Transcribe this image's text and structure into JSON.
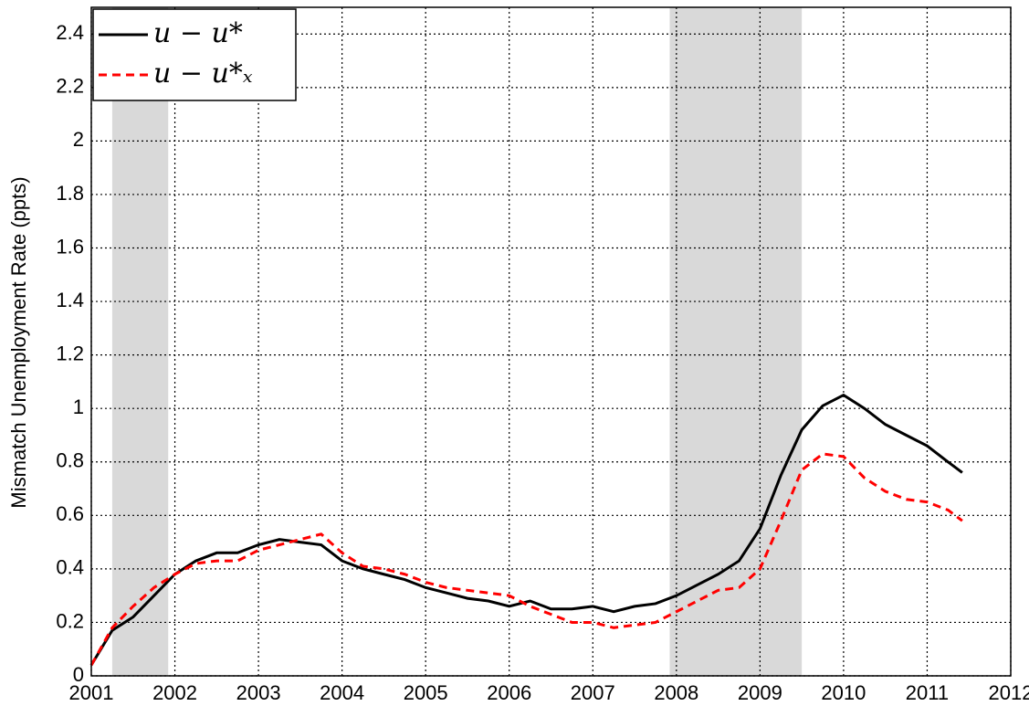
{
  "chart_data": {
    "type": "line",
    "y_label": "Mismatch Unemployment Rate (ppts)",
    "xlim": [
      2001,
      2012
    ],
    "xticks": [
      2001,
      2002,
      2003,
      2004,
      2005,
      2006,
      2007,
      2008,
      2009,
      2010,
      2011,
      2012
    ],
    "ylim": [
      0,
      2.5
    ],
    "yticks": [
      0,
      0.2,
      0.4,
      0.6,
      0.8,
      1,
      1.2,
      1.4,
      1.6,
      1.8,
      2,
      2.2,
      2.4
    ],
    "grid": true,
    "legend": "upper left",
    "shaded_regions": [
      [
        2001.25,
        2001.92
      ],
      [
        2007.92,
        2009.5
      ]
    ],
    "shade_color": "#d9d9d9",
    "x": [
      2001.0,
      2001.25,
      2001.5,
      2001.75,
      2002.0,
      2002.25,
      2002.5,
      2002.75,
      2003.0,
      2003.25,
      2003.5,
      2003.75,
      2004.0,
      2004.25,
      2004.5,
      2004.75,
      2005.0,
      2005.25,
      2005.5,
      2005.75,
      2006.0,
      2006.25,
      2006.5,
      2006.75,
      2007.0,
      2007.25,
      2007.5,
      2007.75,
      2008.0,
      2008.25,
      2008.5,
      2008.75,
      2009.0,
      2009.25,
      2009.5,
      2009.75,
      2010.0,
      2010.25,
      2010.5,
      2010.75,
      2011.0,
      2011.25,
      2011.42
    ],
    "series": [
      {
        "name": "u − u*",
        "color": "#000000",
        "dash": false,
        "values": [
          0.04,
          0.17,
          0.22,
          0.3,
          0.38,
          0.43,
          0.46,
          0.46,
          0.49,
          0.51,
          0.5,
          0.49,
          0.43,
          0.4,
          0.38,
          0.36,
          0.33,
          0.31,
          0.29,
          0.28,
          0.26,
          0.28,
          0.25,
          0.25,
          0.26,
          0.24,
          0.26,
          0.27,
          0.3,
          0.34,
          0.38,
          0.43,
          0.55,
          0.75,
          0.92,
          1.01,
          1.05,
          1.0,
          0.94,
          0.9,
          0.86,
          0.8,
          0.76
        ]
      },
      {
        "name": "u − u*ₓ",
        "color": "#ff0000",
        "dash": true,
        "values": [
          0.04,
          0.18,
          0.26,
          0.33,
          0.38,
          0.42,
          0.43,
          0.43,
          0.47,
          0.49,
          0.51,
          0.53,
          0.46,
          0.41,
          0.4,
          0.38,
          0.35,
          0.33,
          0.32,
          0.31,
          0.3,
          0.26,
          0.23,
          0.2,
          0.2,
          0.18,
          0.19,
          0.2,
          0.24,
          0.28,
          0.32,
          0.33,
          0.4,
          0.58,
          0.77,
          0.83,
          0.82,
          0.74,
          0.69,
          0.66,
          0.65,
          0.62,
          0.58
        ]
      }
    ]
  }
}
